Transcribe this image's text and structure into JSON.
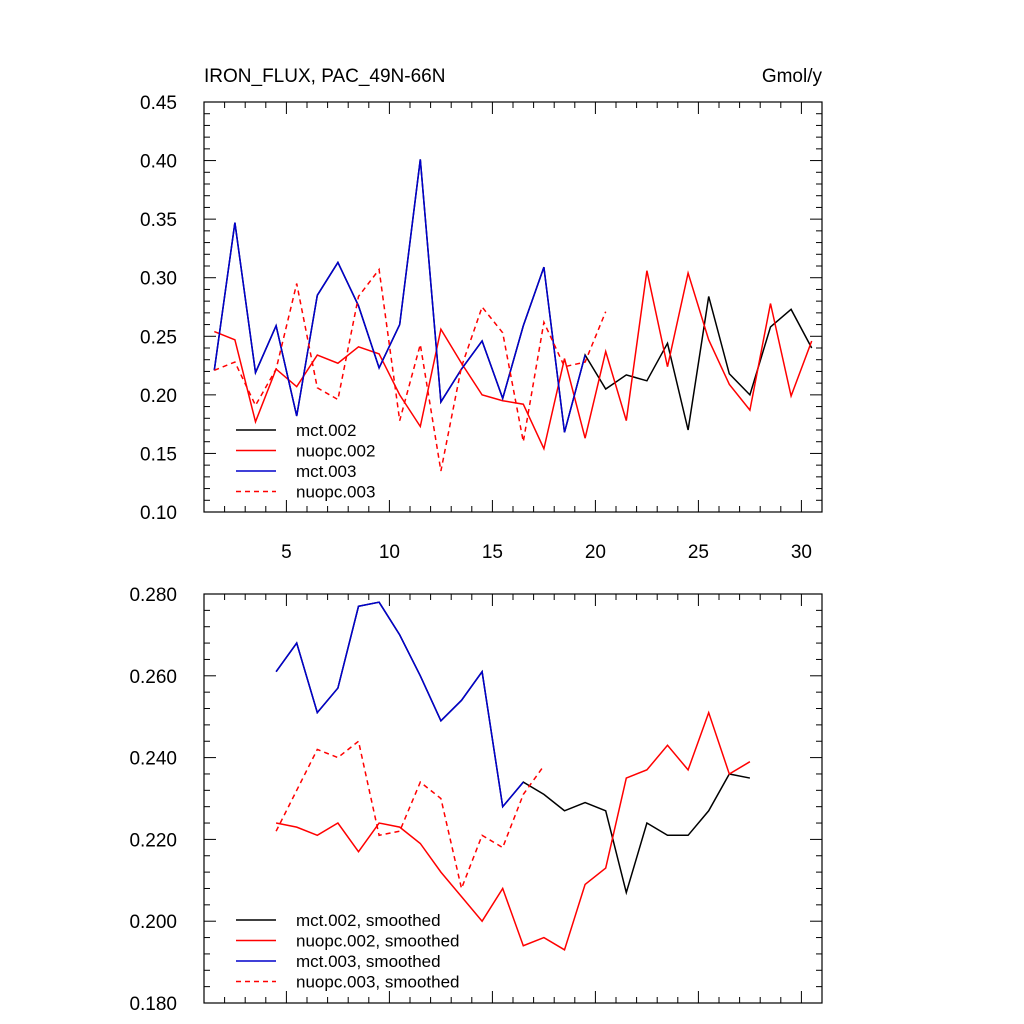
{
  "colors": {
    "black": "#000000",
    "red": "#ff0000",
    "blue": "#0000cc"
  },
  "chart_data": [
    {
      "type": "line",
      "title": "IRON_FLUX, PAC_49N-66N",
      "units": "Gmol/y",
      "xlim": [
        1,
        31
      ],
      "ylim": [
        0.1,
        0.45
      ],
      "xticks": [
        5,
        10,
        15,
        20,
        25,
        30
      ],
      "xtick_labels": [
        "5",
        "10",
        "15",
        "20",
        "25",
        "30"
      ],
      "yticks": [
        0.1,
        0.15,
        0.2,
        0.25,
        0.3,
        0.35,
        0.4,
        0.45
      ],
      "ytick_labels": [
        "0.10",
        "0.15",
        "0.20",
        "0.25",
        "0.30",
        "0.35",
        "0.40",
        "0.45"
      ],
      "legend_position": "bottom-left",
      "series": [
        {
          "name": "mct.002",
          "color": "#000000",
          "dash": "solid",
          "x": [
            1.5,
            2.5,
            3.5,
            4.5,
            5.5,
            6.5,
            7.5,
            8.5,
            9.5,
            10.5,
            11.5,
            12.5,
            13.5,
            14.5,
            15.5,
            16.5,
            17.5,
            18.5,
            19.5,
            20.5,
            21.5,
            22.5,
            23.5,
            24.5,
            25.5,
            26.5,
            27.5,
            28.5,
            29.5,
            30.5
          ],
          "values": [
            0.221,
            0.347,
            0.219,
            0.259,
            0.182,
            0.285,
            0.313,
            0.276,
            0.223,
            0.26,
            0.401,
            0.194,
            0.222,
            0.246,
            0.197,
            0.259,
            0.309,
            0.168,
            0.234,
            0.205,
            0.217,
            0.212,
            0.244,
            0.17,
            0.284,
            0.218,
            0.2,
            0.258,
            0.273,
            0.24
          ]
        },
        {
          "name": "nuopc.002",
          "color": "#ff0000",
          "dash": "solid",
          "x": [
            1.5,
            2.5,
            3.5,
            4.5,
            5.5,
            6.5,
            7.5,
            8.5,
            9.5,
            10.5,
            11.5,
            12.5,
            13.5,
            14.5,
            15.5,
            16.5,
            17.5,
            18.5,
            19.5,
            20.5,
            21.5,
            22.5,
            23.5,
            24.5,
            25.5,
            26.5,
            27.5,
            28.5,
            29.5,
            30.5
          ],
          "values": [
            0.254,
            0.247,
            0.177,
            0.222,
            0.207,
            0.234,
            0.227,
            0.241,
            0.235,
            0.2,
            0.173,
            0.256,
            0.227,
            0.2,
            0.195,
            0.192,
            0.154,
            0.231,
            0.163,
            0.237,
            0.178,
            0.306,
            0.224,
            0.304,
            0.247,
            0.209,
            0.187,
            0.278,
            0.199,
            0.246
          ]
        },
        {
          "name": "mct.003",
          "color": "#0000cc",
          "dash": "solid",
          "x": [
            1.5,
            2.5,
            3.5,
            4.5,
            5.5,
            6.5,
            7.5,
            8.5,
            9.5,
            10.5,
            11.5,
            12.5,
            13.5,
            14.5,
            15.5,
            16.5,
            17.5,
            18.5,
            19.5
          ],
          "values": [
            0.221,
            0.347,
            0.219,
            0.259,
            0.182,
            0.285,
            0.313,
            0.276,
            0.223,
            0.26,
            0.401,
            0.194,
            0.222,
            0.246,
            0.197,
            0.259,
            0.309,
            0.168,
            0.234
          ]
        },
        {
          "name": "nuopc.003",
          "color": "#ff0000",
          "dash": "dashed",
          "x": [
            1.5,
            2.5,
            3.5,
            4.5,
            5.5,
            6.5,
            7.5,
            8.5,
            9.5,
            10.5,
            11.5,
            12.5,
            13.5,
            14.5,
            15.5,
            16.5,
            17.5,
            18.5,
            19.5,
            20.5
          ],
          "values": [
            0.221,
            0.228,
            0.191,
            0.222,
            0.295,
            0.206,
            0.196,
            0.284,
            0.307,
            0.178,
            0.243,
            0.135,
            0.224,
            0.275,
            0.253,
            0.16,
            0.262,
            0.224,
            0.228,
            0.271
          ]
        }
      ]
    },
    {
      "type": "line",
      "xlim": [
        1,
        31
      ],
      "ylim": [
        0.18,
        0.28
      ],
      "xticks": [
        5,
        10,
        15,
        20,
        25,
        30
      ],
      "yticks": [
        0.18,
        0.2,
        0.22,
        0.24,
        0.26,
        0.28
      ],
      "ytick_labels": [
        "0.180",
        "0.200",
        "0.220",
        "0.240",
        "0.260",
        "0.280"
      ],
      "legend_position": "bottom-left",
      "series": [
        {
          "name": "mct.002, smoothed",
          "color": "#000000",
          "dash": "solid",
          "x": [
            4.5,
            5.5,
            6.5,
            7.5,
            8.5,
            9.5,
            10.5,
            11.5,
            12.5,
            13.5,
            14.5,
            15.5,
            16.5,
            17.5,
            18.5,
            19.5,
            20.5,
            21.5,
            22.5,
            23.5,
            24.5,
            25.5,
            26.5,
            27.5
          ],
          "values": [
            0.261,
            0.268,
            0.251,
            0.257,
            0.277,
            0.278,
            0.27,
            0.26,
            0.249,
            0.254,
            0.261,
            0.228,
            0.234,
            0.231,
            0.227,
            0.229,
            0.227,
            0.207,
            0.224,
            0.221,
            0.221,
            0.227,
            0.236,
            0.235
          ]
        },
        {
          "name": "nuopc.002, smoothed",
          "color": "#ff0000",
          "dash": "solid",
          "x": [
            4.5,
            5.5,
            6.5,
            7.5,
            8.5,
            9.5,
            10.5,
            11.5,
            12.5,
            13.5,
            14.5,
            15.5,
            16.5,
            17.5,
            18.5,
            19.5,
            20.5,
            21.5,
            22.5,
            23.5,
            24.5,
            25.5,
            26.5,
            27.5
          ],
          "values": [
            0.224,
            0.223,
            0.221,
            0.224,
            0.217,
            0.224,
            0.223,
            0.219,
            0.212,
            0.206,
            0.2,
            0.208,
            0.194,
            0.196,
            0.193,
            0.209,
            0.213,
            0.235,
            0.237,
            0.243,
            0.237,
            0.251,
            0.236,
            0.239
          ]
        },
        {
          "name": "mct.003, smoothed",
          "color": "#0000cc",
          "dash": "solid",
          "x": [
            4.5,
            5.5,
            6.5,
            7.5,
            8.5,
            9.5,
            10.5,
            11.5,
            12.5,
            13.5,
            14.5,
            15.5,
            16.5
          ],
          "values": [
            0.261,
            0.268,
            0.251,
            0.257,
            0.277,
            0.278,
            0.27,
            0.26,
            0.249,
            0.254,
            0.261,
            0.228,
            0.234
          ]
        },
        {
          "name": "nuopc.003, smoothed",
          "color": "#ff0000",
          "dash": "dashed",
          "x": [
            4.5,
            5.5,
            6.5,
            7.5,
            8.5,
            9.5,
            10.5,
            11.5,
            12.5,
            13.5,
            14.5,
            15.5,
            16.5,
            17.5
          ],
          "values": [
            0.222,
            0.232,
            0.242,
            0.24,
            0.244,
            0.221,
            0.222,
            0.234,
            0.23,
            0.208,
            0.221,
            0.218,
            0.231,
            0.238
          ]
        }
      ]
    }
  ]
}
